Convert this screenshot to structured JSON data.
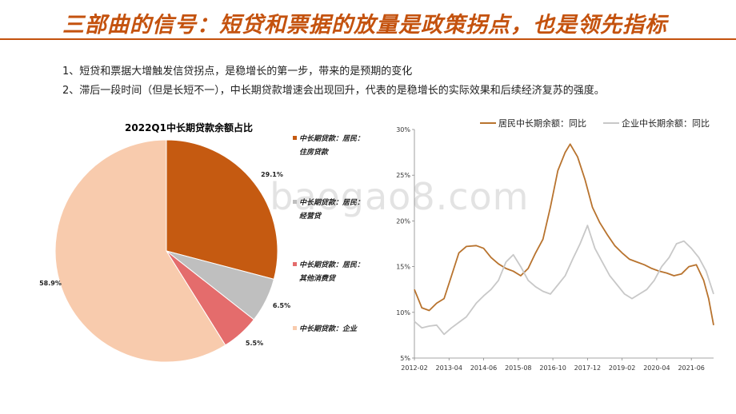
{
  "header": {
    "title": "三部曲的信号：短贷和票据的放量是政策拐点，也是领先指标"
  },
  "notes": [
    "1、短贷和票据大增触发信贷拐点，是稳增长的第一步，带来的是预期的变化",
    "2、滞后一段时间（但是长短不一），中长期贷款增速会出现回升，代表的是稳增长的实际效果和后续经济复苏的强度。"
  ],
  "watermark": "www.baogao8.com",
  "colors": {
    "resident_housing": "#c55a11",
    "resident_business": "#bfbfbf",
    "resident_other": "#e46c6c",
    "enterprise": "#f8cbad",
    "line_resident": "#b8732e",
    "line_enterprise": "#c8c8c8"
  },
  "chart_data": [
    {
      "type": "pie",
      "title": "2022Q1中长期贷款余额占比",
      "legend_position": "right",
      "slices": [
        {
          "name_line1": "中长期贷款：居民：",
          "name_line2": "住房贷款",
          "value": 29.1,
          "label": "29.1%",
          "color": "#c55a11"
        },
        {
          "name_line1": "中长期贷款：居民：",
          "name_line2": "经营贷",
          "value": 6.5,
          "label": "6.5%",
          "color": "#bfbfbf"
        },
        {
          "name_line1": "中长期贷款：居民：",
          "name_line2": "其他消费贷",
          "value": 5.5,
          "label": "5.5%",
          "color": "#e46c6c"
        },
        {
          "name_line1": "中长期贷款：企业",
          "name_line2": "",
          "value": 58.9,
          "label": "58.9%",
          "color": "#f8cbad"
        }
      ]
    },
    {
      "type": "line",
      "legend_position": "top",
      "x_range": [
        "2012-02",
        "2022-03"
      ],
      "xticks": [
        "2012-02",
        "2013-04",
        "2014-06",
        "2015-08",
        "2016-10",
        "2017-12",
        "2019-02",
        "2020-04",
        "2021-06"
      ],
      "ylim": [
        5,
        30
      ],
      "yticks": [
        "5%",
        "10%",
        "15%",
        "20%",
        "25%",
        "30%"
      ],
      "grid": false,
      "series": [
        {
          "name": "居民中长期余额：同比",
          "color": "#b8732e",
          "points": [
            [
              "2012-02",
              12.5
            ],
            [
              "2012-05",
              10.5
            ],
            [
              "2012-08",
              10.2
            ],
            [
              "2012-11",
              11.0
            ],
            [
              "2013-02",
              11.5
            ],
            [
              "2013-05",
              14.0
            ],
            [
              "2013-08",
              16.5
            ],
            [
              "2013-11",
              17.2
            ],
            [
              "2014-03",
              17.3
            ],
            [
              "2014-06",
              17.0
            ],
            [
              "2014-09",
              16.0
            ],
            [
              "2014-12",
              15.3
            ],
            [
              "2015-03",
              14.8
            ],
            [
              "2015-06",
              14.5
            ],
            [
              "2015-09",
              14.0
            ],
            [
              "2015-12",
              14.8
            ],
            [
              "2016-03",
              16.5
            ],
            [
              "2016-06",
              18.0
            ],
            [
              "2016-09",
              21.5
            ],
            [
              "2016-12",
              25.5
            ],
            [
              "2017-03",
              27.5
            ],
            [
              "2017-05",
              28.4
            ],
            [
              "2017-08",
              27.0
            ],
            [
              "2017-11",
              24.5
            ],
            [
              "2018-02",
              21.5
            ],
            [
              "2018-05",
              19.8
            ],
            [
              "2018-08",
              18.5
            ],
            [
              "2018-11",
              17.3
            ],
            [
              "2019-02",
              16.5
            ],
            [
              "2019-05",
              15.8
            ],
            [
              "2019-08",
              15.5
            ],
            [
              "2019-11",
              15.2
            ],
            [
              "2020-02",
              14.8
            ],
            [
              "2020-05",
              14.5
            ],
            [
              "2020-08",
              14.3
            ],
            [
              "2020-11",
              14.0
            ],
            [
              "2021-02",
              14.2
            ],
            [
              "2021-05",
              15.0
            ],
            [
              "2021-08",
              15.2
            ],
            [
              "2021-11",
              13.5
            ],
            [
              "2022-01",
              11.5
            ],
            [
              "2022-03",
              8.6
            ]
          ]
        },
        {
          "name": "企业中长期余额：同比",
          "color": "#c8c8c8",
          "points": [
            [
              "2012-02",
              9.0
            ],
            [
              "2012-05",
              8.3
            ],
            [
              "2012-08",
              8.5
            ],
            [
              "2012-11",
              8.6
            ],
            [
              "2013-02",
              7.6
            ],
            [
              "2013-05",
              8.3
            ],
            [
              "2013-08",
              8.9
            ],
            [
              "2013-11",
              9.5
            ],
            [
              "2014-03",
              11.0
            ],
            [
              "2014-06",
              11.8
            ],
            [
              "2014-09",
              12.5
            ],
            [
              "2014-12",
              13.5
            ],
            [
              "2015-03",
              15.5
            ],
            [
              "2015-06",
              16.3
            ],
            [
              "2015-09",
              15.0
            ],
            [
              "2015-12",
              13.5
            ],
            [
              "2016-03",
              12.8
            ],
            [
              "2016-06",
              12.3
            ],
            [
              "2016-09",
              12.0
            ],
            [
              "2016-12",
              13.0
            ],
            [
              "2017-03",
              14.0
            ],
            [
              "2017-06",
              15.8
            ],
            [
              "2017-09",
              17.5
            ],
            [
              "2017-12",
              19.5
            ],
            [
              "2018-03",
              17.0
            ],
            [
              "2018-06",
              15.5
            ],
            [
              "2018-09",
              14.0
            ],
            [
              "2018-12",
              13.0
            ],
            [
              "2019-03",
              12.0
            ],
            [
              "2019-06",
              11.5
            ],
            [
              "2019-09",
              12.0
            ],
            [
              "2019-12",
              12.5
            ],
            [
              "2020-03",
              13.5
            ],
            [
              "2020-06",
              15.0
            ],
            [
              "2020-09",
              16.0
            ],
            [
              "2020-12",
              17.5
            ],
            [
              "2021-03",
              17.8
            ],
            [
              "2021-06",
              17.0
            ],
            [
              "2021-09",
              16.0
            ],
            [
              "2021-12",
              14.5
            ],
            [
              "2022-03",
              12.0
            ]
          ]
        }
      ]
    }
  ]
}
